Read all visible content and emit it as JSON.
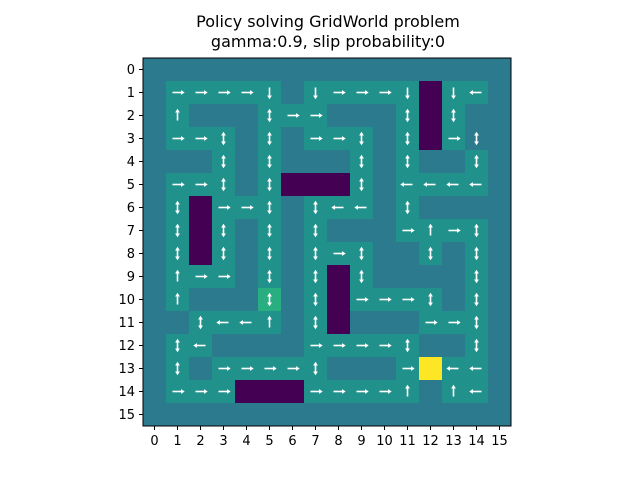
{
  "chart_data": {
    "type": "heatmap",
    "title_lines": [
      "Policy solving GridWorld problem",
      "gamma:0.9, slip probability:0"
    ],
    "x_ticks": [
      "0",
      "1",
      "2",
      "3",
      "4",
      "5",
      "6",
      "7",
      "8",
      "9",
      "10",
      "11",
      "12",
      "13",
      "14",
      "15"
    ],
    "y_ticks": [
      "0",
      "1",
      "2",
      "3",
      "4",
      "5",
      "6",
      "7",
      "8",
      "9",
      "10",
      "11",
      "12",
      "13",
      "14",
      "15"
    ],
    "colormap": "viridis",
    "colors": {
      "wall": "#2c7a8e",
      "path": "#21918c",
      "obstacle": "#440154",
      "goal": "#fde725",
      "special": "#28ae80",
      "arrow": "#ffffff"
    },
    "cells_legend": {
      "W": "wall",
      "P": "path",
      "X": "obstacle",
      "G": "goal",
      "S": "special"
    },
    "cells": [
      "WWWWWWWWWWWWWWWW",
      "WPPPPPWPPPPPXPPW",
      "WPWWWPPPWWWPXPWW",
      "WPPPWPWPPPWPXPWW",
      "WWWPWPWWWPWPWWPW",
      "WPPPWPXXXPWPPPPW",
      "WPXPPPWPPPWPWWWW",
      "WPXPWPWPWWWPPPPW",
      "WPXPWPWPPPWWPWPW",
      "WPPPWPWPXPWWWWPW",
      "WPWWWSWPXPPPPWPW",
      "WWPPPPWPXWWWPPPW",
      "WPPWWWWPPPPPWWPW",
      "WPWPPPPPWWWPGPPW",
      "WPPPXXXPPPPPWPPW",
      "WWWWWWWWWWWWWWWW"
    ],
    "policy_legend": {
      "R": "right",
      "L": "left",
      "U": "up",
      "D": "down",
      "V": "up-down",
      "H": "left-right"
    },
    "policy": [
      "................",
      ".RRRRD.DRRRD.DL.",
      ".U...VRR...V.V..",
      ".RRV.V.RRV.V.RV.",
      "...V.V...V.V..V.",
      ".RRV.V...V.LLLL.",
      ".V.RRV.VLL.V....",
      ".V.V.V.V...RURV.",
      ".V.V.V.VRV..V.V.",
      ".URR.V.V.V....V.",
      ".U...V.V.RRRV.V.",
      "..VLLU.V....RRV.",
      ".VL....RRRRV..V.",
      ".V.RRRRV...RGLL.",
      ".RRR...RRRRU.UL.",
      "................"
    ]
  }
}
